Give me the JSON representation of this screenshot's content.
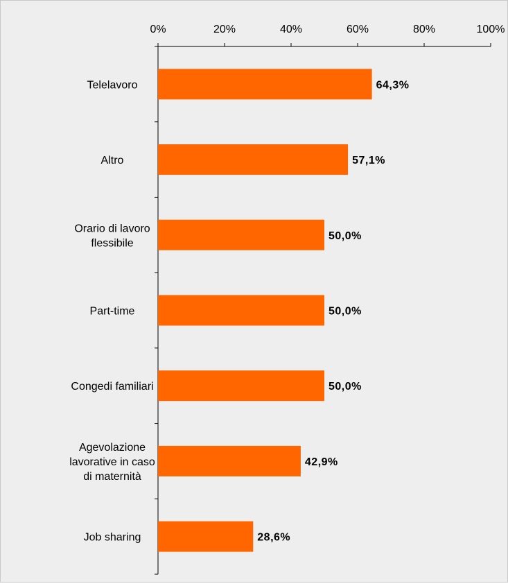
{
  "chart_data": {
    "type": "bar",
    "orientation": "horizontal",
    "title": "",
    "xlabel": "",
    "ylabel": "",
    "categories": [
      [
        "Telelavoro"
      ],
      [
        "Altro"
      ],
      [
        "Orario di lavoro",
        "flessibile"
      ],
      [
        "Part-time"
      ],
      [
        "Congedi familiari"
      ],
      [
        "Agevolazione",
        "lavorative in caso",
        "di maternità"
      ],
      [
        "Job sharing"
      ]
    ],
    "values": [
      64.3,
      57.1,
      50.0,
      50.0,
      50.0,
      42.9,
      28.6
    ],
    "value_labels": [
      "64,3%",
      "57,1%",
      "50,0%",
      "50,0%",
      "50,0%",
      "42,9%",
      "28,6%"
    ],
    "xlim": [
      0,
      100
    ],
    "xticks": [
      0,
      20,
      40,
      60,
      80,
      100
    ],
    "xtick_labels": [
      "0%",
      "20%",
      "40%",
      "60%",
      "80%",
      "100%"
    ],
    "x_axis_position": "top",
    "grid": false,
    "legend": "none",
    "colors": {
      "bar": "#ff6600",
      "background": "#eeeeee",
      "border": "#c8c8c8",
      "axis": "#000000"
    }
  }
}
